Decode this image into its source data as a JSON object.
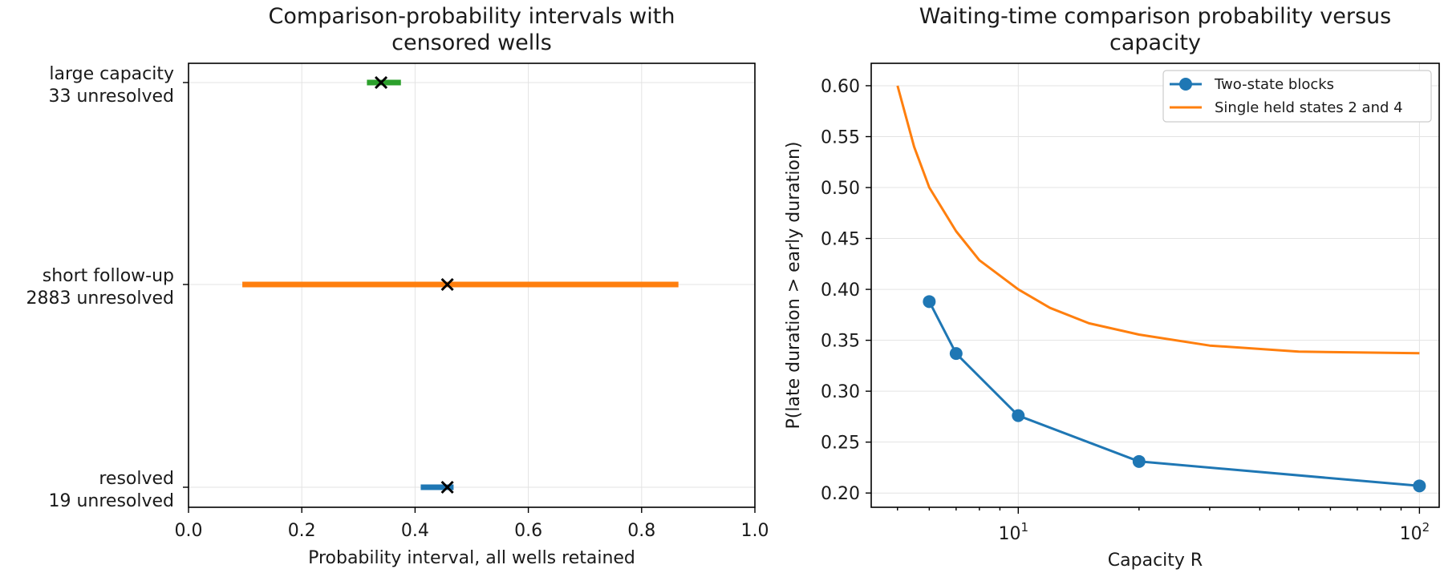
{
  "chart_data": [
    {
      "type": "interval",
      "title": [
        "Comparison-probability intervals with",
        "censored wells"
      ],
      "xlabel": "Probability interval, all wells retained",
      "xlim": [
        0.0,
        1.0
      ],
      "xticks": [
        "0.0",
        "0.2",
        "0.4",
        "0.6",
        "0.8",
        "1.0"
      ],
      "grid": true,
      "rows": [
        {
          "label": [
            "large capacity",
            "33 unresolved"
          ],
          "low": 0.315,
          "high": 0.375,
          "point": 0.34,
          "color": "#2ca02c"
        },
        {
          "label": [
            "short follow-up",
            "2883 unresolved"
          ],
          "low": 0.095,
          "high": 0.865,
          "point": 0.457,
          "color": "#ff7f0e"
        },
        {
          "label": [
            "resolved",
            "19 unresolved"
          ],
          "low": 0.41,
          "high": 0.468,
          "point": 0.457,
          "color": "#1f77b4"
        }
      ]
    },
    {
      "type": "line",
      "title": [
        "Waiting-time comparison probability versus",
        "capacity"
      ],
      "xlabel": "Capacity R",
      "ylabel": "P(late duration > early duration)",
      "xscale": "log",
      "xlim": [
        4.3,
        112
      ],
      "ylim": [
        0.186,
        0.622
      ],
      "yticks": [
        "0.20",
        "0.25",
        "0.30",
        "0.35",
        "0.40",
        "0.45",
        "0.50",
        "0.55",
        "0.60"
      ],
      "xticks": [
        {
          "base": "10",
          "exp": "1",
          "value": 10
        },
        {
          "base": "10",
          "exp": "2",
          "value": 100
        }
      ],
      "grid": true,
      "legend_position": "top-right",
      "series": [
        {
          "name": "Two-state blocks",
          "color": "#1f77b4",
          "markers": true,
          "x": [
            6,
            7,
            10,
            20,
            100
          ],
          "y": [
            0.388,
            0.337,
            0.276,
            0.231,
            0.207
          ]
        },
        {
          "name": "Single held states 2 and 4",
          "color": "#ff7f0e",
          "markers": false,
          "x": [
            5,
            5.5,
            6,
            7,
            8,
            10,
            12,
            15,
            20,
            30,
            50,
            100
          ],
          "y": [
            0.6,
            0.54,
            0.5,
            0.4571,
            0.4286,
            0.4,
            0.3818,
            0.3667,
            0.3556,
            0.3448,
            0.3388,
            0.3373
          ]
        }
      ]
    }
  ]
}
